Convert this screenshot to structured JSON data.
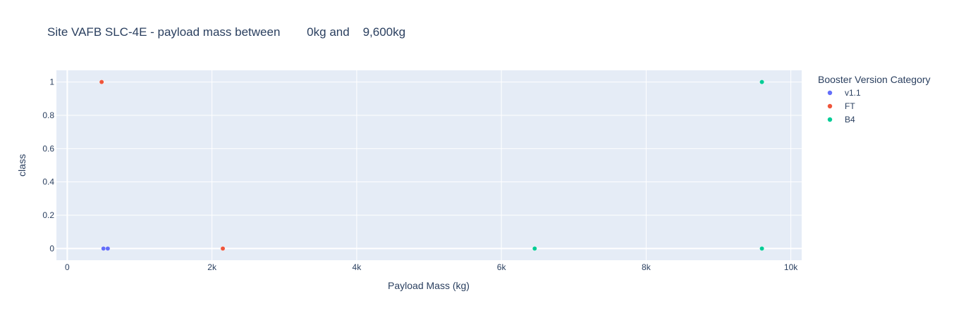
{
  "chart_data": {
    "type": "scatter",
    "title": "Site VAFB SLC-4E - payload mass between        0kg and    9,600kg",
    "xlabel": "Payload Mass (kg)",
    "ylabel": "class",
    "xlim": [
      -150,
      10150
    ],
    "ylim": [
      -0.07,
      1.07
    ],
    "xticks": [
      0,
      2000,
      4000,
      6000,
      8000,
      10000
    ],
    "xtick_labels": [
      "0",
      "2k",
      "4k",
      "6k",
      "8k",
      "10k"
    ],
    "yticks": [
      0,
      0.2,
      0.4,
      0.6,
      0.8,
      1
    ],
    "ytick_labels": [
      "0",
      "0.2",
      "0.4",
      "0.6",
      "0.8",
      "1"
    ],
    "grid": true,
    "legend": {
      "title": "Booster Version Category",
      "placement": "right"
    },
    "series": [
      {
        "name": "v1.1",
        "color": "#636efa",
        "points": [
          {
            "x": 500,
            "y": 0
          },
          {
            "x": 560,
            "y": 0
          }
        ]
      },
      {
        "name": "FT",
        "color": "#ef553b",
        "points": [
          {
            "x": 475,
            "y": 1
          },
          {
            "x": 2150,
            "y": 0
          }
        ]
      },
      {
        "name": "B4",
        "color": "#00cc96",
        "points": [
          {
            "x": 6460,
            "y": 0
          },
          {
            "x": 9600,
            "y": 1
          },
          {
            "x": 9600,
            "y": 0
          }
        ]
      }
    ]
  }
}
